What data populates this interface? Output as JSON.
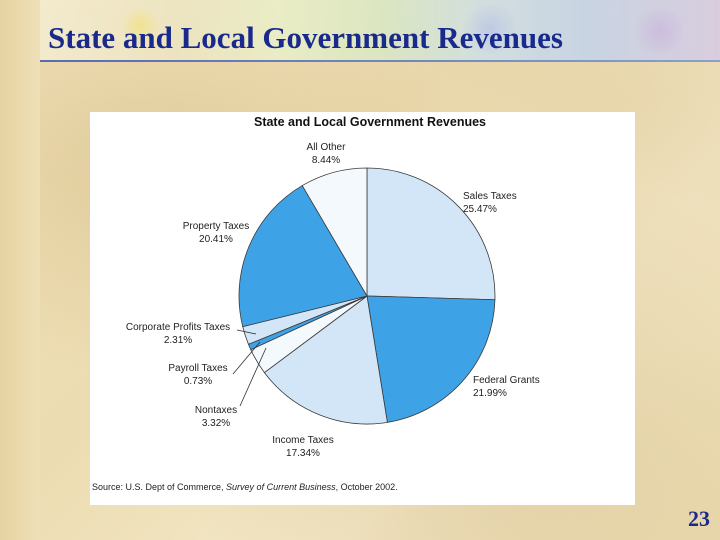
{
  "slide": {
    "title": "State and Local Government Revenues",
    "page_number": "23"
  },
  "chart_data": {
    "type": "pie",
    "title": "State and Local Government Revenues",
    "source": "Source: U.S. Dept of Commerce, Survey of Current Business, October 2002.",
    "slices": [
      {
        "label": "Sales Taxes",
        "value": 25.47,
        "value_label": "25.47%",
        "color": "#d3e6f8"
      },
      {
        "label": "Federal Grants",
        "value": 21.99,
        "value_label": "21.99%",
        "color": "#3ea3e6"
      },
      {
        "label": "Income Taxes",
        "value": 17.34,
        "value_label": "17.34%",
        "color": "#d3e6f8"
      },
      {
        "label": "Nontaxes",
        "value": 3.32,
        "value_label": "3.32%",
        "color": "#f4f9fe"
      },
      {
        "label": "Payroll Taxes",
        "value": 0.73,
        "value_label": "0.73%",
        "color": "#3ea3e6"
      },
      {
        "label": "Corporate Profits Taxes",
        "value": 2.31,
        "value_label": "2.31%",
        "color": "#d3e6f8"
      },
      {
        "label": "Property Taxes",
        "value": 20.41,
        "value_label": "20.41%",
        "color": "#3ea3e6"
      },
      {
        "label": "All Other",
        "value": 8.44,
        "value_label": "8.44%",
        "color": "#f4f9fe"
      }
    ]
  }
}
